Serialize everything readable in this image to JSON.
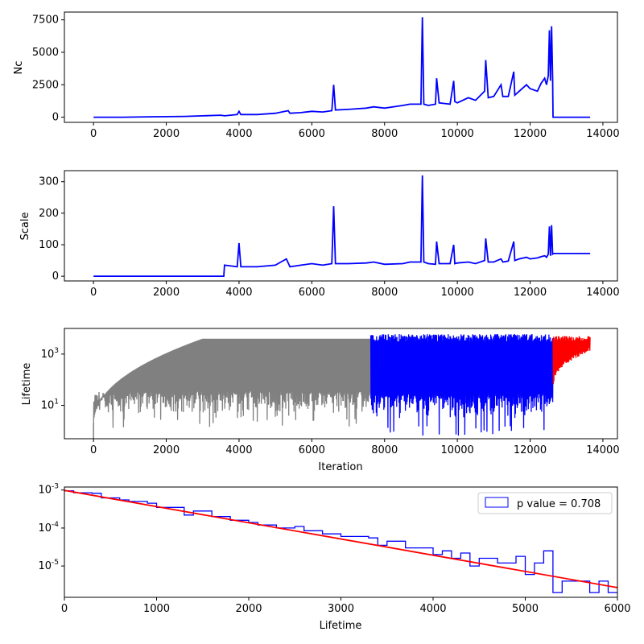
{
  "chart_data": [
    {
      "type": "line",
      "title": "",
      "xlabel": "",
      "ylabel": "Nc",
      "xlim": [
        -800,
        14400
      ],
      "ylim": [
        -400,
        8100
      ],
      "xticks": [
        0,
        2000,
        4000,
        6000,
        8000,
        10000,
        12000,
        14000
      ],
      "yticks": [
        0,
        2500,
        5000,
        7500
      ],
      "color": "#0000ff",
      "series": [
        {
          "x": [
            0,
            800,
            1500,
            2500,
            3000,
            3500,
            3600,
            3950,
            4000,
            4050,
            4500,
            5000,
            5350,
            5400,
            5700,
            6000,
            6300,
            6550,
            6600,
            6650,
            7000,
            7500,
            7700,
            8000,
            8500,
            8700,
            9000,
            9040,
            9080,
            9200,
            9400,
            9430,
            9500,
            9800,
            9900,
            9930,
            10000,
            10300,
            10500,
            10750,
            10780,
            10850,
            11000,
            11200,
            11250,
            11400,
            11550,
            11580,
            11700,
            11900,
            12000,
            12200,
            12300,
            12400,
            12450,
            12500,
            12530,
            12560,
            12590,
            12620,
            12630,
            13650
          ],
          "y": [
            0,
            0,
            30,
            60,
            100,
            150,
            100,
            200,
            450,
            200,
            200,
            300,
            500,
            300,
            350,
            450,
            400,
            500,
            2500,
            550,
            600,
            700,
            800,
            700,
            900,
            1000,
            1000,
            7700,
            1000,
            900,
            1000,
            3000,
            1100,
            1000,
            2800,
            1200,
            1100,
            1500,
            1300,
            2000,
            4400,
            1500,
            1600,
            2500,
            1600,
            1600,
            3500,
            1700,
            2000,
            2500,
            2200,
            2000,
            2600,
            3000,
            2500,
            3200,
            6700,
            2800,
            7000,
            3000,
            0,
            0
          ]
        }
      ]
    },
    {
      "type": "line",
      "title": "",
      "xlabel": "",
      "ylabel": "Scale",
      "xlim": [
        -800,
        14400
      ],
      "ylim": [
        -15,
        335
      ],
      "xticks": [
        0,
        2000,
        4000,
        6000,
        8000,
        10000,
        12000,
        14000
      ],
      "yticks": [
        0,
        100,
        200,
        300
      ],
      "color": "#0000ff",
      "series": [
        {
          "x": [
            0,
            3580,
            3600,
            3950,
            4000,
            4050,
            4500,
            5000,
            5300,
            5400,
            5700,
            6000,
            6300,
            6550,
            6600,
            6650,
            7000,
            7500,
            7700,
            8000,
            8500,
            8700,
            9000,
            9040,
            9080,
            9200,
            9400,
            9430,
            9500,
            9800,
            9900,
            9930,
            10000,
            10300,
            10500,
            10750,
            10780,
            10850,
            11000,
            11200,
            11250,
            11400,
            11550,
            11580,
            11700,
            11900,
            12000,
            12200,
            12300,
            12400,
            12450,
            12500,
            12530,
            12560,
            12590,
            12620,
            12640,
            13650
          ],
          "y": [
            0,
            0,
            35,
            30,
            105,
            30,
            30,
            35,
            55,
            30,
            35,
            40,
            35,
            40,
            222,
            40,
            40,
            42,
            45,
            38,
            40,
            45,
            45,
            320,
            45,
            40,
            38,
            110,
            40,
            40,
            100,
            40,
            42,
            45,
            40,
            50,
            120,
            45,
            45,
            55,
            45,
            48,
            110,
            50,
            55,
            60,
            55,
            58,
            62,
            65,
            60,
            70,
            158,
            65,
            162,
            70,
            72,
            72
          ]
        }
      ]
    },
    {
      "type": "line",
      "title": "",
      "xlabel": "Iteration",
      "ylabel": "Lifetime",
      "scale_y": "log",
      "xlim": [
        -800,
        14400
      ],
      "ylim": [
        0.5,
        10000
      ],
      "xticks": [
        0,
        2000,
        4000,
        6000,
        8000,
        10000,
        12000,
        14000
      ],
      "yticks": [
        10,
        1000
      ],
      "ytick_labels": [
        "10^1",
        "10^3"
      ],
      "series": [
        {
          "name": "",
          "color": "#808080",
          "x_range": [
            0,
            7620
          ],
          "upper_envelope": "rising from 1 to ~5000",
          "lower_envelope": "~5 to 30"
        },
        {
          "name": "",
          "color": "#0000ff",
          "x_range": [
            7620,
            12630
          ],
          "upper_envelope": "~4000 to 6000",
          "lower_envelope": "~2 to 20"
        },
        {
          "name": "",
          "color": "#ff0000",
          "x_range": [
            12630,
            13650
          ],
          "upper_envelope": "~4000",
          "lower_envelope": "rising from 50 to 1500"
        }
      ]
    },
    {
      "type": "step",
      "title": "",
      "xlabel": "Lifetime",
      "ylabel": "",
      "scale_y": "log",
      "xlim": [
        0,
        6000
      ],
      "ylim": [
        1.5e-06,
        0.0012
      ],
      "xticks": [
        0,
        1000,
        2000,
        3000,
        4000,
        5000,
        6000
      ],
      "yticks": [
        1e-05,
        0.0001,
        0.001
      ],
      "ytick_labels": [
        "10^-5",
        "10^-4",
        "10^-3"
      ],
      "legend": {
        "label": "p value = 0.708",
        "position": "top-right"
      },
      "histogram": {
        "color": "#0000ff",
        "bin_width": 100,
        "bin_start": 0,
        "values": [
          0.00095,
          0.00085,
          0.00085,
          0.00082,
          0.00062,
          0.00062,
          0.00055,
          0.0005,
          0.0005,
          0.00045,
          0.00035,
          0.00035,
          0.00035,
          0.00022,
          0.00028,
          0.00028,
          0.0002,
          0.0002,
          0.00016,
          0.00016,
          0.00014,
          0.00012,
          0.00012,
          0.0001,
          0.0001,
          0.00011,
          8.5e-05,
          8.5e-05,
          7e-05,
          7e-05,
          6e-05,
          6e-05,
          6e-05,
          5.5e-05,
          3.5e-05,
          4.5e-05,
          4.5e-05,
          3e-05,
          3e-05,
          3e-05,
          2e-05,
          2.5e-05,
          1.6e-05,
          2.2e-05,
          1e-05,
          1.6e-05,
          1.6e-05,
          1.2e-05,
          1.2e-05,
          1.8e-05,
          6e-06,
          1.2e-05,
          2.5e-05,
          2e-06,
          4e-06,
          4e-06,
          4e-06,
          2e-06,
          4e-06,
          2e-06
        ]
      },
      "fit_line": {
        "color": "#ff0000",
        "x": [
          0,
          6000
        ],
        "y": [
          0.00098,
          2.7e-06
        ]
      }
    }
  ]
}
